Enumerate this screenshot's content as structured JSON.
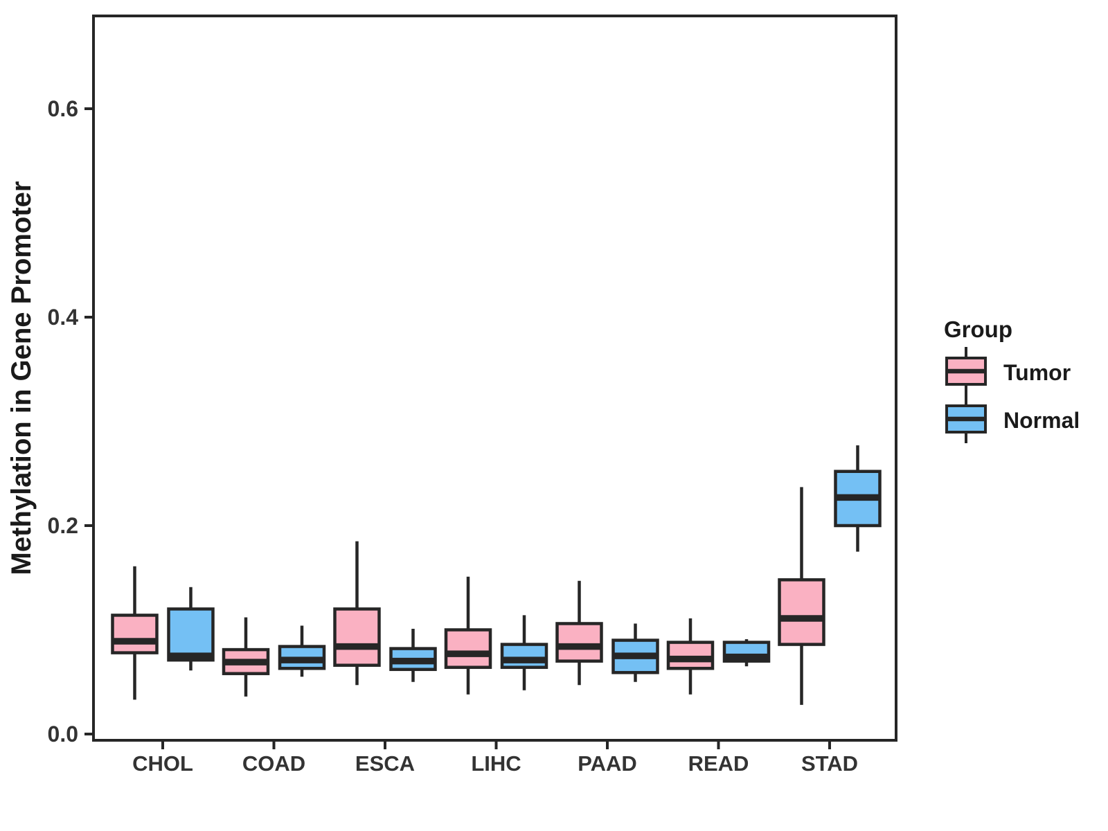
{
  "figure": {
    "background": "#ffffff",
    "panel_border_color": "#262626",
    "box_stroke_color": "#262626",
    "text_color": "#333333"
  },
  "y_axis": {
    "title": "Methylation in Gene Promoter",
    "tick_labels": [
      "0.0",
      "0.2",
      "0.4",
      "0.6"
    ],
    "tick_values": [
      0.0,
      0.2,
      0.4,
      0.6
    ]
  },
  "x_axis": {
    "categories": [
      "CHOL",
      "COAD",
      "ESCA",
      "LIHC",
      "PAAD",
      "READ",
      "STAD"
    ]
  },
  "legend": {
    "title": "Group",
    "entries": [
      {
        "label": "Tumor",
        "color": "#FAB1C2"
      },
      {
        "label": "Normal",
        "color": "#74C0F4"
      }
    ]
  },
  "chart_data": {
    "type": "boxplot",
    "title": "",
    "xlabel": "",
    "ylabel": "Methylation in Gene Promoter",
    "ylim": [
      0.0,
      0.69
    ],
    "yticks": [
      0.0,
      0.2,
      0.4,
      0.6
    ],
    "grid": false,
    "legend_position": "right",
    "categories": [
      "CHOL",
      "COAD",
      "ESCA",
      "LIHC",
      "PAAD",
      "READ",
      "STAD"
    ],
    "series": [
      {
        "name": "Tumor",
        "color": "#FAB1C2",
        "boxes": [
          {
            "category": "CHOL",
            "min": 0.033,
            "q1": 0.078,
            "median": 0.089,
            "q3": 0.114,
            "max": 0.161
          },
          {
            "category": "COAD",
            "min": 0.036,
            "q1": 0.058,
            "median": 0.069,
            "q3": 0.081,
            "max": 0.112
          },
          {
            "category": "ESCA",
            "min": 0.047,
            "q1": 0.066,
            "median": 0.084,
            "q3": 0.12,
            "max": 0.185
          },
          {
            "category": "LIHC",
            "min": 0.038,
            "q1": 0.064,
            "median": 0.077,
            "q3": 0.1,
            "max": 0.151
          },
          {
            "category": "PAAD",
            "min": 0.047,
            "q1": 0.07,
            "median": 0.084,
            "q3": 0.106,
            "max": 0.147
          },
          {
            "category": "READ",
            "min": 0.038,
            "q1": 0.063,
            "median": 0.072,
            "q3": 0.088,
            "max": 0.111
          },
          {
            "category": "STAD",
            "min": 0.028,
            "q1": 0.086,
            "median": 0.111,
            "q3": 0.148,
            "max": 0.237
          }
        ]
      },
      {
        "name": "Normal",
        "color": "#74C0F4",
        "boxes": [
          {
            "category": "CHOL",
            "min": 0.061,
            "q1": 0.071,
            "median": 0.075,
            "q3": 0.12,
            "max": 0.141
          },
          {
            "category": "COAD",
            "min": 0.055,
            "q1": 0.063,
            "median": 0.071,
            "q3": 0.084,
            "max": 0.104
          },
          {
            "category": "ESCA",
            "min": 0.05,
            "q1": 0.062,
            "median": 0.07,
            "q3": 0.082,
            "max": 0.101
          },
          {
            "category": "LIHC",
            "min": 0.042,
            "q1": 0.064,
            "median": 0.071,
            "q3": 0.086,
            "max": 0.114
          },
          {
            "category": "PAAD",
            "min": 0.05,
            "q1": 0.059,
            "median": 0.075,
            "q3": 0.09,
            "max": 0.106
          },
          {
            "category": "READ",
            "min": 0.065,
            "q1": 0.07,
            "median": 0.074,
            "q3": 0.088,
            "max": 0.091
          },
          {
            "category": "STAD",
            "min": 0.175,
            "q1": 0.2,
            "median": 0.227,
            "q3": 0.252,
            "max": 0.277
          }
        ]
      }
    ]
  }
}
